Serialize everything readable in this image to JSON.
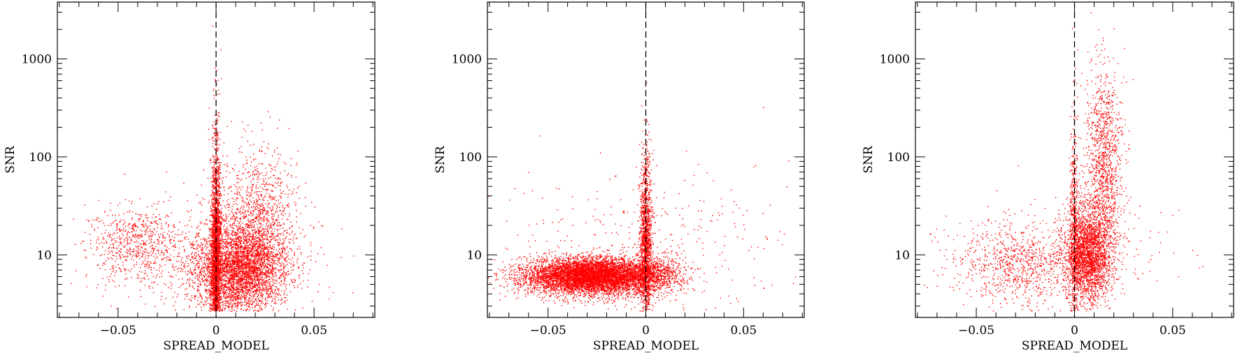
{
  "chart_data": [
    {
      "type": "scatter",
      "xlabel": "SPREAD_MODEL",
      "ylabel": "SNR",
      "x_ticks": [
        -0.05,
        0,
        0.05
      ],
      "x_tick_labels": [
        "−0.05",
        "0",
        "0.05"
      ],
      "y_ticks": [
        10,
        100,
        1000
      ],
      "y_tick_labels": [
        "10",
        "100",
        "1000"
      ],
      "xlim": [
        -0.081,
        0.081
      ],
      "ylim": [
        2.3,
        3800
      ],
      "y_scale": "log",
      "reference_line_x": 0,
      "marker_color": "#ff0000",
      "points": {
        "count": 9000,
        "seed": 11,
        "groups": [
          {
            "n": 3000,
            "xm": 0.0,
            "xs": 0.0012,
            "lm": 0.85,
            "ls": 0.65
          },
          {
            "n": 3800,
            "xm": 0.012,
            "xs": 0.012,
            "lm": 0.85,
            "ls": 0.22
          },
          {
            "n": 1200,
            "xm": 0.02,
            "xs": 0.01,
            "lm": 1.35,
            "ls": 0.35
          },
          {
            "n": 700,
            "xm": -0.04,
            "xs": 0.012,
            "lm": 1.1,
            "ls": 0.2
          },
          {
            "n": 300,
            "xm": 0.0,
            "xs": 0.035,
            "lm": 1.0,
            "ls": 0.3
          }
        ]
      }
    },
    {
      "type": "scatter",
      "xlabel": "SPREAD_MODEL",
      "ylabel": "SNR",
      "x_ticks": [
        -0.05,
        0,
        0.05
      ],
      "x_tick_labels": [
        "−0.05",
        "0",
        "0.05"
      ],
      "y_ticks": [
        10,
        100,
        1000
      ],
      "y_tick_labels": [
        "10",
        "100",
        "1000"
      ],
      "xlim": [
        -0.081,
        0.081
      ],
      "ylim": [
        2.3,
        3800
      ],
      "y_scale": "log",
      "reference_line_x": 0,
      "marker_color": "#ff0000",
      "points": {
        "count": 9500,
        "seed": 23,
        "groups": [
          {
            "n": 7000,
            "xm": -0.028,
            "xs": 0.017,
            "lm": 0.78,
            "ls": 0.09
          },
          {
            "n": 1500,
            "xm": 0.0,
            "xs": 0.0015,
            "lm": 1.1,
            "ls": 0.45
          },
          {
            "n": 600,
            "xm": 0.004,
            "xs": 0.008,
            "lm": 0.8,
            "ls": 0.1
          },
          {
            "n": 400,
            "xm": 0.0,
            "xs": 0.04,
            "lm": 1.1,
            "ls": 0.45
          }
        ]
      }
    },
    {
      "type": "scatter",
      "xlabel": "SPREAD_MODEL",
      "ylabel": "SNR",
      "x_ticks": [
        -0.05,
        0,
        0.05
      ],
      "x_tick_labels": [
        "−0.05",
        "0",
        "0.05"
      ],
      "y_ticks": [
        10,
        100,
        1000
      ],
      "y_tick_labels": [
        "10",
        "100",
        "1000"
      ],
      "xlim": [
        -0.081,
        0.081
      ],
      "ylim": [
        2.3,
        3800
      ],
      "y_scale": "log",
      "reference_line_x": 0,
      "marker_color": "#ff0000",
      "points": {
        "count": 5400,
        "seed": 37,
        "groups": [
          {
            "n": 2500,
            "xm": 0.007,
            "xs": 0.006,
            "lm": 1.0,
            "ls": 0.25
          },
          {
            "n": 1200,
            "xm": 0.015,
            "xs": 0.005,
            "lm": 1.9,
            "ls": 0.5
          },
          {
            "n": 600,
            "xm": 0.0,
            "xs": 0.0012,
            "lm": 1.2,
            "ls": 0.6
          },
          {
            "n": 900,
            "xm": -0.028,
            "xs": 0.016,
            "lm": 0.9,
            "ls": 0.2
          },
          {
            "n": 200,
            "xm": 0.0,
            "xs": 0.03,
            "lm": 1.0,
            "ls": 0.3
          }
        ]
      }
    }
  ]
}
